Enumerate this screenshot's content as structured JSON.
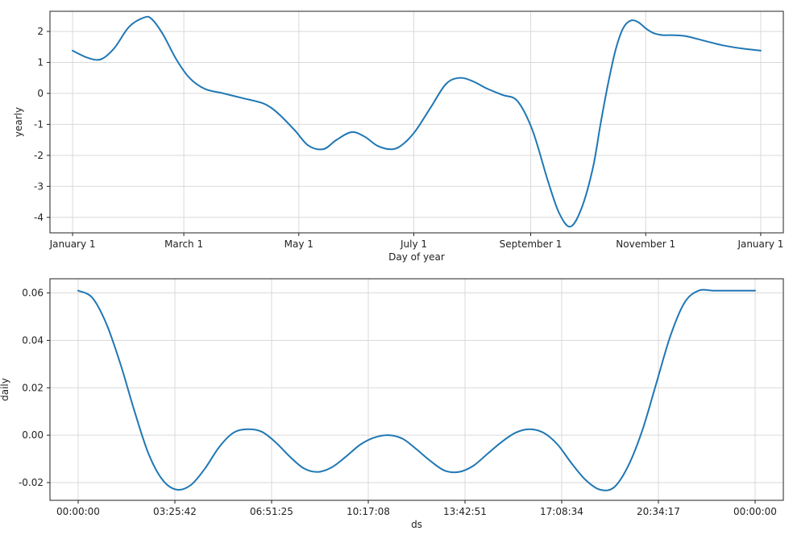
{
  "chart_data": [
    {
      "type": "line",
      "xlabel": "Day of year",
      "ylabel": "yearly",
      "ylim": [
        -4.5,
        2.65
      ],
      "xlim": [
        -12,
        377
      ],
      "grid": true,
      "color": "#1f77b4",
      "x_ticks": [
        {
          "label": "January 1",
          "value": 0
        },
        {
          "label": "March 1",
          "value": 59
        },
        {
          "label": "May 1",
          "value": 120
        },
        {
          "label": "July 1",
          "value": 181
        },
        {
          "label": "September 1",
          "value": 243
        },
        {
          "label": "November 1",
          "value": 304
        },
        {
          "label": "January 1",
          "value": 365
        }
      ],
      "y_ticks": [
        2,
        1,
        0,
        -1,
        -2,
        -3,
        -4
      ],
      "y_tick_labels": [
        "2",
        "1",
        "0",
        "-1",
        "-2",
        "-3",
        "-4"
      ],
      "x": [
        0,
        8,
        15,
        22,
        30,
        38,
        42,
        48,
        55,
        62,
        70,
        80,
        90,
        100,
        105,
        110,
        118,
        125,
        133,
        140,
        148,
        155,
        162,
        170,
        176,
        182,
        190,
        198,
        205,
        212,
        220,
        228,
        236,
        244,
        252,
        258,
        264,
        270,
        276,
        280,
        284,
        288,
        292,
        296,
        300,
        304,
        308,
        313,
        318,
        325,
        335,
        345,
        355,
        365
      ],
      "values": [
        1.38,
        1.15,
        1.1,
        1.45,
        2.15,
        2.45,
        2.4,
        1.9,
        1.1,
        0.5,
        0.15,
        0.0,
        -0.15,
        -0.3,
        -0.45,
        -0.7,
        -1.2,
        -1.68,
        -1.8,
        -1.5,
        -1.25,
        -1.4,
        -1.7,
        -1.8,
        -1.6,
        -1.2,
        -0.45,
        0.3,
        0.5,
        0.4,
        0.15,
        -0.05,
        -0.25,
        -1.2,
        -2.8,
        -3.85,
        -4.3,
        -3.7,
        -2.4,
        -1.0,
        0.3,
        1.4,
        2.1,
        2.35,
        2.3,
        2.1,
        1.95,
        1.88,
        1.88,
        1.85,
        1.7,
        1.55,
        1.45,
        1.38
      ]
    },
    {
      "type": "line",
      "xlabel": "ds",
      "ylabel": "daily",
      "ylim": [
        -0.0275,
        0.066
      ],
      "xlim": [
        -3600,
        90000
      ],
      "grid": true,
      "color": "#1f77b4",
      "x_ticks": [
        {
          "label": "00:00:00",
          "value": 0
        },
        {
          "label": "03:25:42",
          "value": 12342
        },
        {
          "label": "06:51:25",
          "value": 24685
        },
        {
          "label": "10:17:08",
          "value": 37028
        },
        {
          "label": "13:42:51",
          "value": 49371
        },
        {
          "label": "17:08:34",
          "value": 61714
        },
        {
          "label": "20:34:17",
          "value": 74057
        },
        {
          "label": "00:00:00",
          "value": 86400
        }
      ],
      "y_ticks": [
        0.06,
        0.04,
        0.02,
        0.0,
        -0.02
      ],
      "y_tick_labels": [
        "0.06",
        "0.04",
        "0.02",
        "0.00",
        "-0.02"
      ],
      "x": [
        0,
        1800,
        3600,
        5400,
        7200,
        9000,
        10800,
        12600,
        14400,
        16200,
        18000,
        19800,
        21600,
        23400,
        25200,
        27000,
        28800,
        30600,
        32400,
        34200,
        36000,
        37800,
        39600,
        41400,
        43200,
        45000,
        46800,
        48600,
        50400,
        52200,
        54000,
        55800,
        57600,
        59400,
        61200,
        63000,
        64800,
        66600,
        68400,
        70200,
        72000,
        73800,
        75600,
        77400,
        79200,
        81000,
        82800,
        84600,
        86400
      ],
      "values": [
        0.061,
        0.058,
        0.047,
        0.03,
        0.01,
        -0.008,
        -0.019,
        -0.023,
        -0.021,
        -0.014,
        -0.005,
        0.001,
        0.0025,
        0.0015,
        -0.003,
        -0.009,
        -0.014,
        -0.0155,
        -0.0135,
        -0.009,
        -0.004,
        -0.001,
        0.0,
        -0.0015,
        -0.006,
        -0.011,
        -0.015,
        -0.0155,
        -0.013,
        -0.008,
        -0.003,
        0.001,
        0.0025,
        0.001,
        -0.004,
        -0.012,
        -0.019,
        -0.023,
        -0.022,
        -0.013,
        0.002,
        0.022,
        0.042,
        0.056,
        0.061,
        0.061,
        0.061,
        0.061,
        0.061
      ]
    }
  ]
}
